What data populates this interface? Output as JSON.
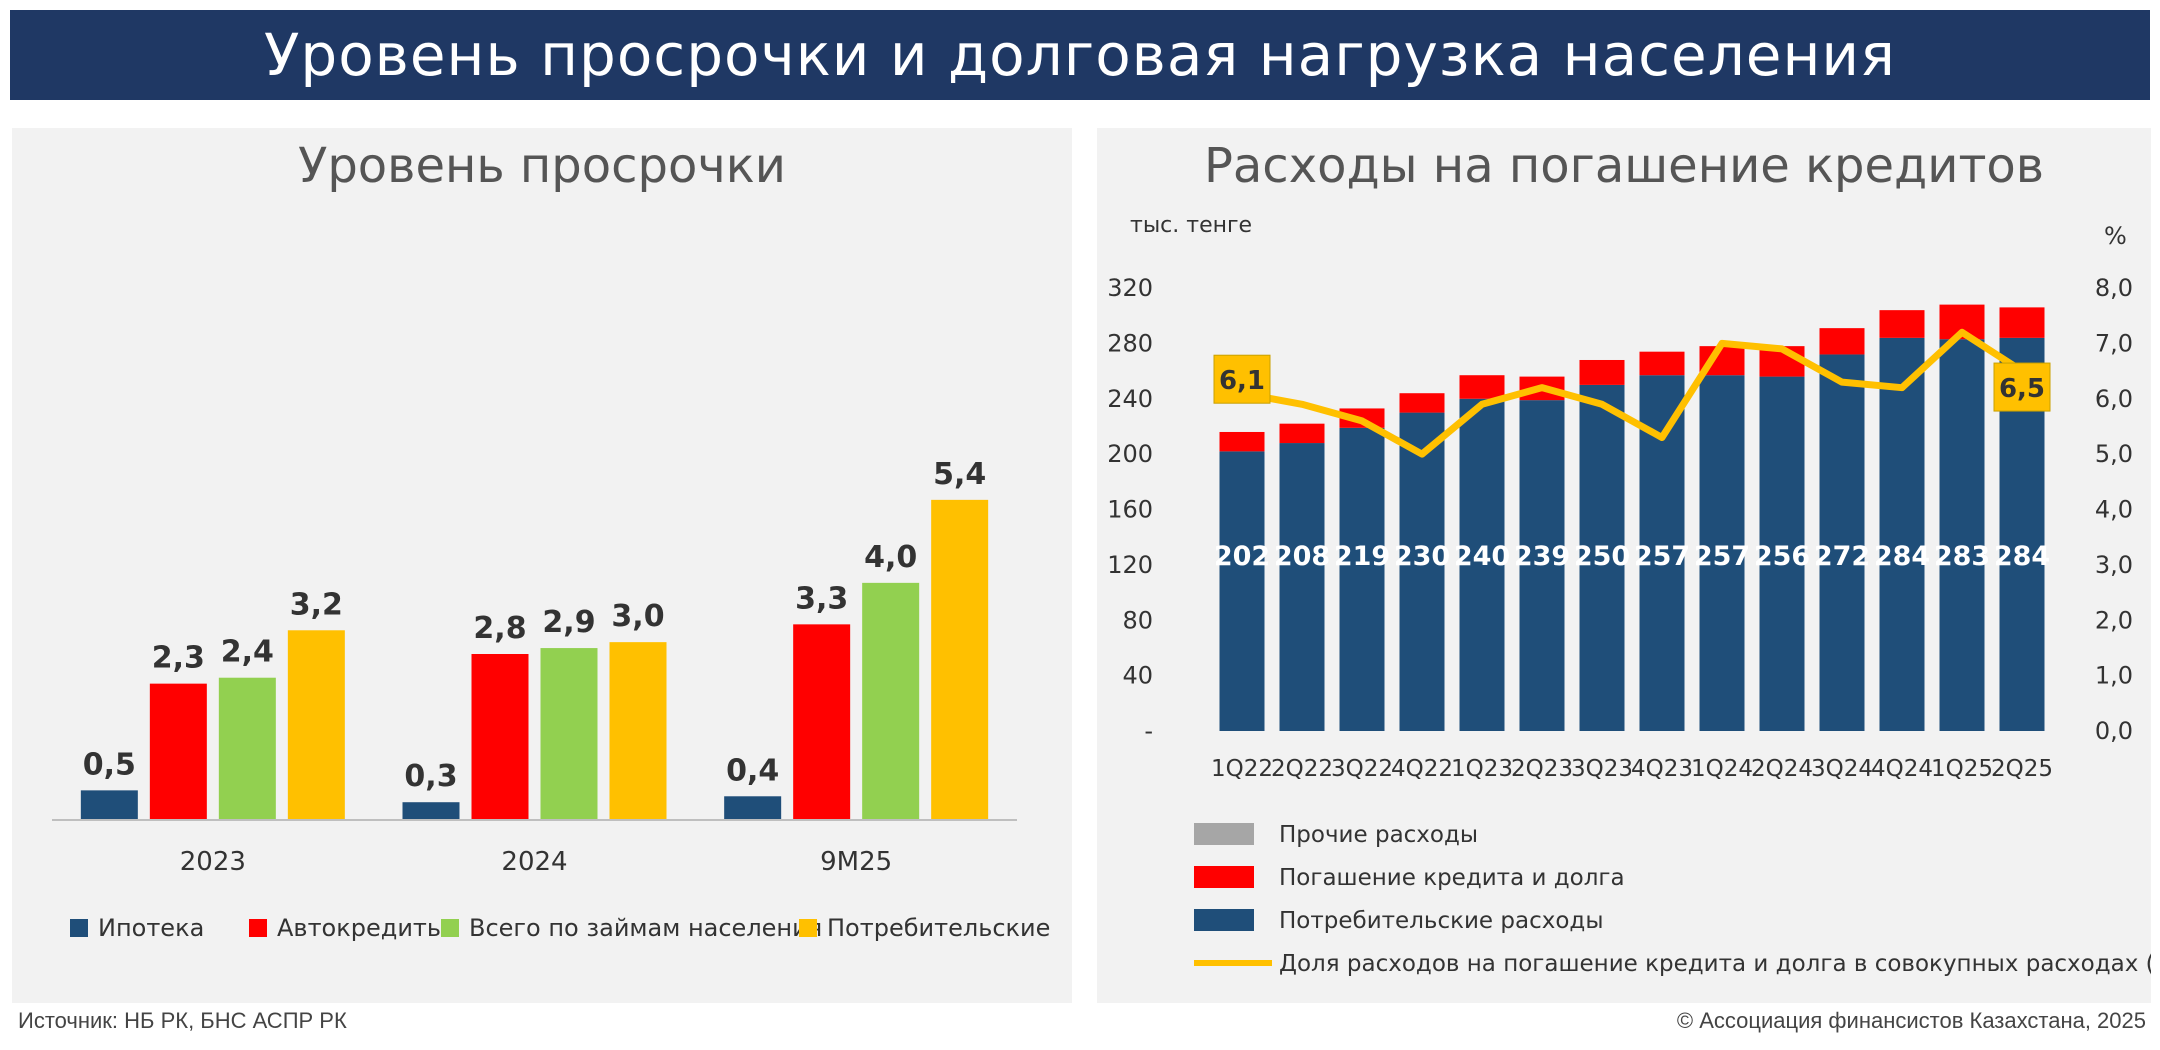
{
  "header": {
    "title": "Уровень просрочки и долговая нагрузка населения"
  },
  "footer": {
    "source": "Источник: НБ РК, БНС АСПР РК",
    "copyright": "© Ассоциация финансистов Казахстана, 2025"
  },
  "chart_data": [
    {
      "type": "bar",
      "title": "Уровень просрочки",
      "categories": [
        "2023",
        "2024",
        "9M25"
      ],
      "series": [
        {
          "name": "Ипотека",
          "color": "#1f4e79",
          "values": [
            0.5,
            0.3,
            0.4
          ]
        },
        {
          "name": "Автокредиты",
          "color": "#ff0000",
          "values": [
            2.3,
            2.8,
            3.3
          ]
        },
        {
          "name": "Всего по займам населения",
          "color": "#92d050",
          "values": [
            2.4,
            2.9,
            4.0
          ]
        },
        {
          "name": "Потребительские",
          "color": "#ffc000",
          "values": [
            3.2,
            3.0,
            5.4
          ]
        }
      ],
      "value_labels": [
        [
          "0,5",
          "0,3",
          "0,4"
        ],
        [
          "2,3",
          "2,8",
          "3,3"
        ],
        [
          "2,4",
          "2,9",
          "4,0"
        ],
        [
          "3,2",
          "3,0",
          "5,4"
        ]
      ],
      "legend": "bottom",
      "ylim": [
        0,
        5.6
      ]
    },
    {
      "type": "bar",
      "stacked": true,
      "title": "Расходы на погашение кредитов",
      "ylabel": "тыс. тенге",
      "y2label": "%",
      "categories": [
        "1Q22",
        "2Q22",
        "3Q22",
        "4Q22",
        "1Q23",
        "2Q23",
        "3Q23",
        "4Q23",
        "1Q24",
        "2Q24",
        "3Q24",
        "4Q24",
        "1Q25",
        "2Q25"
      ],
      "ylim": [
        0,
        320
      ],
      "yticks": [
        "-",
        "40",
        "80",
        "120",
        "160",
        "200",
        "240",
        "280",
        "320"
      ],
      "y2lim": [
        0,
        8
      ],
      "y2ticks": [
        "0,0",
        "1,0",
        "2,0",
        "3,0",
        "4,0",
        "5,0",
        "6,0",
        "7,0",
        "8,0"
      ],
      "series": [
        {
          "name": "Прочие расходы",
          "color": "#a6a6a6",
          "values": [
            0,
            0,
            0,
            0,
            0,
            0,
            0,
            0,
            0,
            0,
            0,
            0,
            0,
            0
          ]
        },
        {
          "name": "Погашение кредита и долга",
          "color": "#ff0000",
          "values": [
            14,
            14,
            14,
            14,
            17,
            17,
            18,
            17,
            21,
            22,
            19,
            20,
            25,
            22
          ]
        },
        {
          "name": "Потребительские расходы",
          "color": "#1f4e79",
          "values": [
            202,
            208,
            219,
            230,
            240,
            239,
            250,
            257,
            257,
            256,
            272,
            284,
            283,
            284
          ],
          "value_labels": [
            "202",
            "208",
            "219",
            "230",
            "240",
            "239",
            "250",
            "257",
            "257",
            "256",
            "272",
            "284",
            "283",
            "284"
          ]
        },
        {
          "name": "Доля расходов на погашение кредита и долга в совокупных расходах (R)",
          "type": "line",
          "axis": "right",
          "color": "#ffc000",
          "values": [
            6.1,
            5.9,
            5.6,
            5.0,
            5.9,
            6.2,
            5.9,
            5.3,
            7.0,
            6.9,
            6.3,
            6.2,
            7.2,
            6.5
          ],
          "callouts": {
            "first": "6,1",
            "last": "6,5"
          }
        }
      ],
      "legend": "bottom"
    }
  ]
}
